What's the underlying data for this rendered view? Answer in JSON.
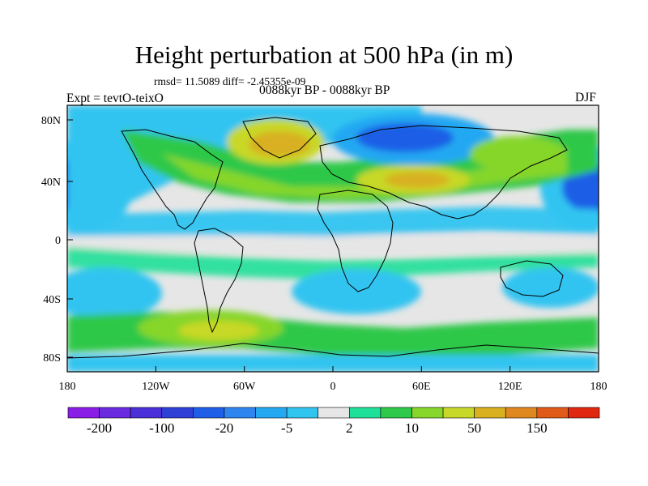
{
  "title": "Height perturbation at 500 hPa (in m)",
  "stats_line": "rmsd= 11.5089 diff= -2.45355e-09",
  "experiment_label": "Expt = tevtO-teixO",
  "period_label": "0088kyr BP - 0088kyr BP",
  "season_label": "DJF",
  "lat_ticks": [
    "80N",
    "40N",
    "0",
    "40S",
    "80S"
  ],
  "lon_ticks": [
    "180",
    "120W",
    "60W",
    "0",
    "60E",
    "120E",
    "180"
  ],
  "colorbar": {
    "colors": [
      "#8a1ee6",
      "#6a2ae0",
      "#4b2fd8",
      "#2f40d6",
      "#1f5ee6",
      "#2f85f0",
      "#24a8f2",
      "#30c4f0",
      "#e6e6e6",
      "#1fe098",
      "#2ec84a",
      "#86d62c",
      "#c8d828",
      "#d8b020",
      "#e08820",
      "#e05a18",
      "#e02810"
    ],
    "labels": [
      "-200",
      "-100",
      "-20",
      "-5",
      "2",
      "10",
      "50",
      "150"
    ]
  },
  "map_background": "#e6e6e6"
}
